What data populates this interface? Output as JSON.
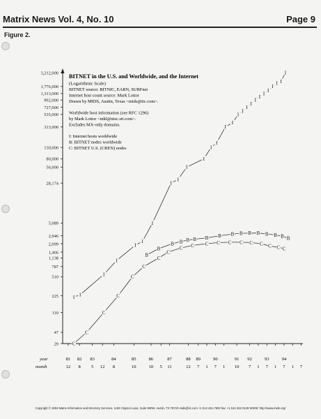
{
  "header": {
    "title": "Matrix News Vol. 4, No. 10",
    "page": "Page 9"
  },
  "figure_label": "Figure 2.",
  "chart_data": {
    "type": "line",
    "title": "BITNET in the U.S. and Worldwide, and the Internet",
    "subtitle": "(Logarithmic Scale)",
    "notes": [
      "BITNET source: BITNIC, EARN, SURFnet",
      "Internet host count source: Mark Lottor",
      "Drawn by MIDS, Austin, Texas <mids@tic.com>.",
      "",
      "Worldwide host information (see RFC 1296)",
      "by Mark Lottor <mkl@nisc.sri.com>.",
      "Excludes MX-only domains.",
      "",
      "I:   Internet hosts worldwide",
      "B:   BITNET nodes worldwide",
      "C:   BITNET U.S. (CREN) nodes"
    ],
    "y_scale": "log",
    "y_ticks": [
      29,
      47,
      110,
      225,
      510,
      787,
      1138,
      1466,
      2099,
      2946,
      5089,
      28174,
      56000,
      80000,
      130000,
      313000,
      535000,
      727000,
      992000,
      1313000,
      1776000,
      3212000
    ],
    "y_tick_labels": [
      "29",
      "47",
      "110",
      "225",
      "510",
      "787",
      "1,138",
      "1,466",
      "2,099",
      "2,946",
      "5,089",
      "28,174",
      "56,000",
      "80,000",
      "130,000",
      "313,000",
      "535,000",
      "727,000",
      "992,000",
      "1,313,000",
      "1,776,000",
      "3,212,000"
    ],
    "x_row_labels": [
      "year",
      "month"
    ],
    "x_ticks": [
      {
        "year": "81",
        "month": "12",
        "t": 1981.92
      },
      {
        "year": "82",
        "month": "8",
        "t": 1982.58
      },
      {
        "year": "83",
        "month": "5",
        "t": 1983.33
      },
      {
        "year": "",
        "month": "12",
        "t": 1983.92
      },
      {
        "year": "84",
        "month": "8",
        "t": 1984.58
      },
      {
        "year": "85",
        "month": "10",
        "t": 1985.75
      },
      {
        "year": "86",
        "month": "10",
        "t": 1986.75
      },
      {
        "year": "",
        "month": "5",
        "t": 1987.33
      },
      {
        "year": "87",
        "month": "11",
        "t": 1987.83
      },
      {
        "year": "88",
        "month": "12",
        "t": 1988.92
      },
      {
        "year": "89",
        "month": "7",
        "t": 1989.5
      },
      {
        "year": "",
        "month": "1",
        "t": 1990.0
      },
      {
        "year": "90",
        "month": "7",
        "t": 1990.5
      },
      {
        "year": "",
        "month": "1",
        "t": 1991.0
      },
      {
        "year": "91",
        "month": "10",
        "t": 1991.75
      },
      {
        "year": "92",
        "month": "7",
        "t": 1992.5
      },
      {
        "year": "",
        "month": "1",
        "t": 1993.0
      },
      {
        "year": "93",
        "month": "7",
        "t": 1993.5
      },
      {
        "year": "",
        "month": "1",
        "t": 1994.0
      },
      {
        "year": "94",
        "month": "7",
        "t": 1994.5
      },
      {
        "year": "",
        "month": "1",
        "t": 1995.0
      },
      {
        "year": "",
        "month": "7",
        "t": 1995.5
      }
    ],
    "series": [
      {
        "name": "I:   Internet hosts worldwide",
        "marker": "I",
        "points": [
          {
            "t": 1982.25,
            "v": 213
          },
          {
            "t": 1982.62,
            "v": 235
          },
          {
            "t": 1984.0,
            "v": 562
          },
          {
            "t": 1984.75,
            "v": 1024
          },
          {
            "t": 1985.83,
            "v": 1961
          },
          {
            "t": 1986.25,
            "v": 2308
          },
          {
            "t": 1986.83,
            "v": 5089
          },
          {
            "t": 1987.92,
            "v": 28174
          },
          {
            "t": 1988.33,
            "v": 33000
          },
          {
            "t": 1988.83,
            "v": 56000
          },
          {
            "t": 1989.83,
            "v": 80000
          },
          {
            "t": 1990.25,
            "v": 130000
          },
          {
            "t": 1990.58,
            "v": 159000
          },
          {
            "t": 1991.08,
            "v": 313000
          },
          {
            "t": 1991.5,
            "v": 376000
          },
          {
            "t": 1991.83,
            "v": 535000
          },
          {
            "t": 1992.08,
            "v": 617000
          },
          {
            "t": 1992.33,
            "v": 727000
          },
          {
            "t": 1992.58,
            "v": 850000
          },
          {
            "t": 1992.83,
            "v": 992000
          },
          {
            "t": 1993.08,
            "v": 1136000
          },
          {
            "t": 1993.33,
            "v": 1313000
          },
          {
            "t": 1993.58,
            "v": 1486000
          },
          {
            "t": 1993.83,
            "v": 1776000
          },
          {
            "t": 1994.08,
            "v": 2056000
          },
          {
            "t": 1994.33,
            "v": 2217000
          },
          {
            "t": 1994.58,
            "v": 3212000
          }
        ]
      },
      {
        "name": "B:   BITNET nodes worldwide",
        "marker": "B",
        "points": [
          {
            "t": 1986.5,
            "v": 1300
          },
          {
            "t": 1987.2,
            "v": 1700
          },
          {
            "t": 1988.0,
            "v": 2100
          },
          {
            "t": 1988.5,
            "v": 2300
          },
          {
            "t": 1988.9,
            "v": 2450
          },
          {
            "t": 1989.3,
            "v": 2550
          },
          {
            "t": 1990.0,
            "v": 2700
          },
          {
            "t": 1990.75,
            "v": 2946
          },
          {
            "t": 1991.5,
            "v": 3180
          },
          {
            "t": 1992.0,
            "v": 3280
          },
          {
            "t": 1992.5,
            "v": 3300
          },
          {
            "t": 1993.0,
            "v": 3300
          },
          {
            "t": 1993.5,
            "v": 3200
          },
          {
            "t": 1994.0,
            "v": 3050
          },
          {
            "t": 1994.4,
            "v": 2900
          },
          {
            "t": 1994.75,
            "v": 2650
          }
        ]
      },
      {
        "name": "C:   BITNET U.S. (CREN) nodes",
        "marker": "C",
        "points": [
          {
            "t": 1982.25,
            "v": 29
          },
          {
            "t": 1983.0,
            "v": 47
          },
          {
            "t": 1984.0,
            "v": 110
          },
          {
            "t": 1984.83,
            "v": 225
          },
          {
            "t": 1985.67,
            "v": 510
          },
          {
            "t": 1986.33,
            "v": 787
          },
          {
            "t": 1987.2,
            "v": 1138
          },
          {
            "t": 1987.75,
            "v": 1466
          },
          {
            "t": 1988.5,
            "v": 1750
          },
          {
            "t": 1989.17,
            "v": 1950
          },
          {
            "t": 1990.0,
            "v": 2099
          },
          {
            "t": 1990.67,
            "v": 2200
          },
          {
            "t": 1991.33,
            "v": 2230
          },
          {
            "t": 1992.0,
            "v": 2230
          },
          {
            "t": 1992.58,
            "v": 2200
          },
          {
            "t": 1993.17,
            "v": 2099
          },
          {
            "t": 1993.67,
            "v": 1900
          },
          {
            "t": 1994.17,
            "v": 1800
          },
          {
            "t": 1994.5,
            "v": 1700
          }
        ]
      }
    ]
  },
  "footer": "Copyright © 1994 Matrix Information and Directory Services, 1106 Clayton Lane, Suite 500W, Austin, TX 78723 mids@tic.com +1 512 451-7602 fax: +1 512 452 0128 WWW: http://www.mids.org/"
}
